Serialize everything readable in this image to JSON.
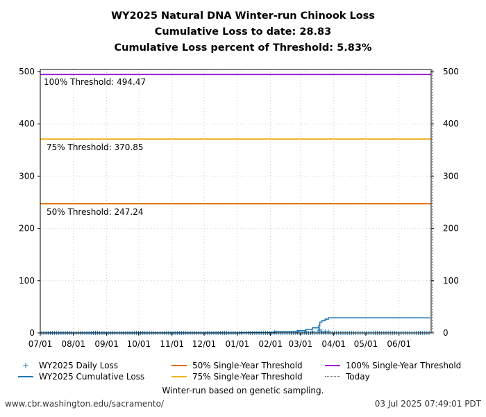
{
  "title": {
    "line1": "WY2025 Natural DNA Winter-run Chinook Loss",
    "line2": "Cumulative Loss to date: 28.83",
    "line3": "Cumulative Loss percent of Threshold: 5.83%"
  },
  "annotations": {
    "t100": "100% Threshold: 494.47",
    "t75": "75% Threshold: 370.85",
    "t50": "50% Threshold: 247.24"
  },
  "legend": {
    "daily": "WY2025 Daily Loss",
    "cumulative": "WY2025 Cumulative Loss",
    "t50": "50% Single-Year Threshold",
    "t75": "75% Single-Year Threshold",
    "t100": "100% Single-Year Threshold",
    "today": "Today"
  },
  "footer": {
    "note": "Winter-run based on genetic sampling.",
    "url": "www.cbr.washington.edu/sacramento/",
    "timestamp": "03 Jul 2025 07:49:01 PDT"
  },
  "colors": {
    "cumulative": "#1f77b4",
    "daily": "#1f77b4",
    "t50": "#e36c0a",
    "t75": "#f0b323",
    "t100": "#9b1bd8",
    "today": "#555555",
    "grid": "#cccccc"
  },
  "chart_data": {
    "type": "line",
    "title": "WY2025 Natural DNA Winter-run Chinook Loss",
    "subtitle": [
      "Cumulative Loss to date: 28.83",
      "Cumulative Loss percent of Threshold: 5.83%"
    ],
    "xlabel": "",
    "ylabel": "",
    "x_tick_labels": [
      "07/01",
      "08/01",
      "09/01",
      "10/01",
      "11/01",
      "12/01",
      "01/01",
      "02/01",
      "03/01",
      "04/01",
      "05/01",
      "06/01"
    ],
    "y_ticks": [
      0,
      100,
      200,
      300,
      400,
      500
    ],
    "ylim": [
      0,
      500
    ],
    "xlim": [
      "2024-07-01",
      "2025-06-30"
    ],
    "grid": true,
    "secondary_y_axis": true,
    "legend_position": "bottom",
    "series": [
      {
        "name": "WY2025 Cumulative Loss",
        "type": "step",
        "x": [
          "2024-07-01",
          "2025-01-05",
          "2025-02-05",
          "2025-02-26",
          "2025-03-06",
          "2025-03-12",
          "2025-03-18",
          "2025-03-19",
          "2025-03-21",
          "2025-03-24",
          "2025-03-27",
          "2025-06-30"
        ],
        "values": [
          0,
          0.6,
          2.3,
          4.3,
          6.7,
          9.7,
          13.8,
          20.5,
          23.5,
          26.3,
          28.83,
          28.83
        ]
      },
      {
        "name": "WY2025 Daily Loss",
        "type": "scatter",
        "marker": "+",
        "note": "daily markers near 0 across year; largest ~6.7 around 03/19",
        "x": [
          "2025-01-05",
          "2025-02-05",
          "2025-02-26",
          "2025-03-06",
          "2025-03-12",
          "2025-03-18",
          "2025-03-19",
          "2025-03-21",
          "2025-03-24",
          "2025-03-27"
        ],
        "values": [
          0.6,
          1.7,
          2.0,
          2.4,
          3.0,
          4.1,
          6.7,
          3.0,
          2.8,
          2.5
        ]
      },
      {
        "name": "50% Single-Year Threshold",
        "type": "hline",
        "value": 247.24
      },
      {
        "name": "75% Single-Year Threshold",
        "type": "hline",
        "value": 370.85
      },
      {
        "name": "100% Single-Year Threshold",
        "type": "hline",
        "value": 494.47
      },
      {
        "name": "Today",
        "type": "vline",
        "x": "2025-07-03"
      }
    ]
  }
}
